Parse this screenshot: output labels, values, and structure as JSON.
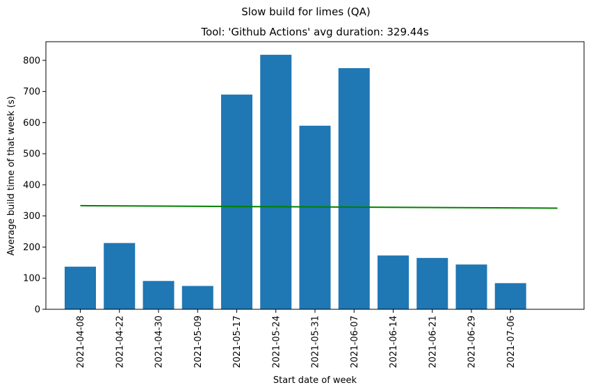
{
  "chart_data": {
    "type": "bar",
    "suptitle": "Slow build for limes (QA)",
    "title": "Tool: 'Github Actions' avg duration: 329.44s",
    "xlabel": "Start date of week",
    "ylabel": "Average build time of that week (s)",
    "categories": [
      "2021-04-08",
      "2021-04-22",
      "2021-04-30",
      "2021-05-09",
      "2021-05-17",
      "2021-05-24",
      "2021-05-31",
      "2021-06-07",
      "2021-06-14",
      "2021-06-21",
      "2021-06-29",
      "2021-07-06"
    ],
    "values": [
      137,
      213,
      91,
      75,
      690,
      818,
      590,
      775,
      173,
      165,
      144,
      84
    ],
    "bar_color": "#1f77b4",
    "trend_line": {
      "color": "#008000",
      "start": 333,
      "end": 325,
      "x_end_index": 12.2
    },
    "ylim": [
      0,
      860
    ],
    "yticks": [
      0,
      100,
      200,
      300,
      400,
      500,
      600,
      700,
      800
    ],
    "xlim": [
      -0.88,
      12.88
    ],
    "grid": false
  }
}
